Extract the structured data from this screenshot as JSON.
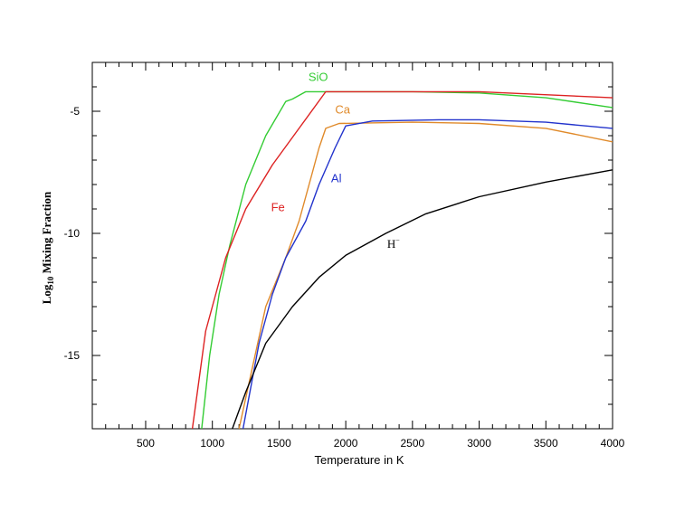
{
  "chart_data": {
    "type": "line",
    "title": "",
    "xlabel": "Temperature in K",
    "ylabel": {
      "prefix": "Log",
      "subscript": "10",
      "suffix": " Mixing Fraction"
    },
    "xlim": [
      100,
      4000
    ],
    "ylim": [
      -18,
      -3
    ],
    "x_ticks": [
      500,
      1000,
      1500,
      2000,
      2500,
      3000,
      3500,
      4000
    ],
    "y_ticks": [
      -5,
      -10,
      -15
    ],
    "grid": false,
    "series": [
      {
        "name": "SiO",
        "color": "#33cc33",
        "points": [
          [
            920,
            -18
          ],
          [
            980,
            -15
          ],
          [
            1050,
            -12.5
          ],
          [
            1130,
            -10.5
          ],
          [
            1250,
            -8
          ],
          [
            1400,
            -6
          ],
          [
            1550,
            -4.6
          ],
          [
            1600,
            -4.5
          ],
          [
            1700,
            -4.2
          ],
          [
            2500,
            -4.2
          ],
          [
            3000,
            -4.25
          ],
          [
            3500,
            -4.45
          ],
          [
            4000,
            -4.85
          ]
        ]
      },
      {
        "name": "Fe",
        "color": "#dd2222",
        "points": [
          [
            850,
            -18
          ],
          [
            950,
            -14
          ],
          [
            1100,
            -11
          ],
          [
            1250,
            -9
          ],
          [
            1450,
            -7.2
          ],
          [
            1650,
            -5.7
          ],
          [
            1850,
            -4.2
          ],
          [
            2500,
            -4.2
          ],
          [
            3000,
            -4.2
          ],
          [
            4000,
            -4.45
          ]
        ]
      },
      {
        "name": "Ca",
        "color": "#e08a2a",
        "points": [
          [
            1200,
            -18
          ],
          [
            1300,
            -15.5
          ],
          [
            1400,
            -13
          ],
          [
            1550,
            -11
          ],
          [
            1650,
            -9.5
          ],
          [
            1750,
            -7.5
          ],
          [
            1800,
            -6.5
          ],
          [
            1850,
            -5.7
          ],
          [
            1950,
            -5.5
          ],
          [
            2500,
            -5.45
          ],
          [
            3000,
            -5.5
          ],
          [
            3500,
            -5.7
          ],
          [
            4000,
            -6.25
          ]
        ]
      },
      {
        "name": "Al",
        "color": "#2233cc",
        "points": [
          [
            1230,
            -18
          ],
          [
            1350,
            -14.5
          ],
          [
            1450,
            -12.5
          ],
          [
            1550,
            -11
          ],
          [
            1700,
            -9.5
          ],
          [
            1800,
            -8
          ],
          [
            1920,
            -6.5
          ],
          [
            2000,
            -5.6
          ],
          [
            2200,
            -5.4
          ],
          [
            2700,
            -5.35
          ],
          [
            3000,
            -5.35
          ],
          [
            3500,
            -5.45
          ],
          [
            4000,
            -5.7
          ]
        ]
      },
      {
        "name": "H",
        "name_sup": "−",
        "color": "#000000",
        "points": [
          [
            1150,
            -18
          ],
          [
            1250,
            -16.5
          ],
          [
            1400,
            -14.5
          ],
          [
            1600,
            -13
          ],
          [
            1800,
            -11.8
          ],
          [
            2000,
            -10.9
          ],
          [
            2300,
            -10
          ],
          [
            2600,
            -9.2
          ],
          [
            3000,
            -8.5
          ],
          [
            3500,
            -7.9
          ],
          [
            4000,
            -7.4
          ]
        ]
      }
    ],
    "annotations": [
      {
        "text": "SiO",
        "x": 1720,
        "y": -3.75
      },
      {
        "text": "Ca",
        "x": 1920,
        "y": -5.1
      },
      {
        "text": "Al",
        "x": 1890,
        "y": -7.9
      },
      {
        "text": "Fe",
        "x": 1440,
        "y": -9.1
      },
      {
        "text": "H",
        "x": 2310,
        "y": -10.6
      }
    ]
  }
}
